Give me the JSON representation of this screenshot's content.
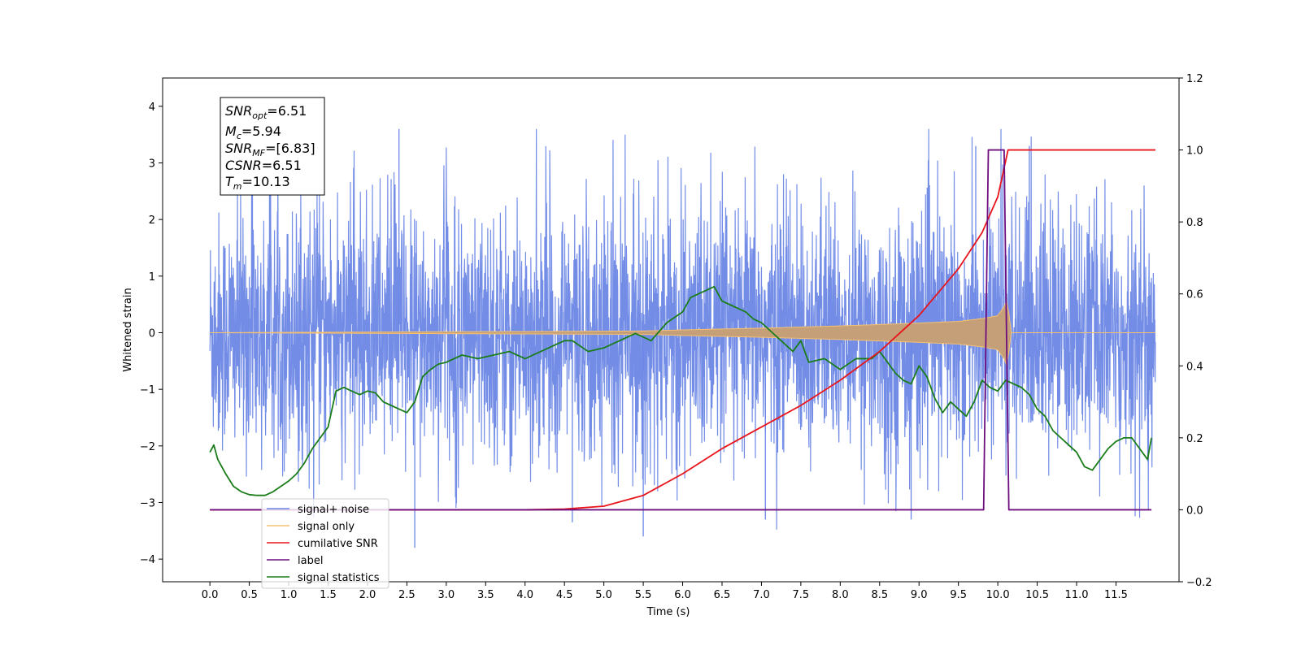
{
  "chart_data": {
    "type": "line",
    "xlabel": "Time (s)",
    "ylabel": "Whitened strain",
    "xlim": [
      -0.6,
      12.3
    ],
    "ylim": [
      -4.4,
      4.5
    ],
    "y2lim": [
      -0.2,
      1.2
    ],
    "x_ticks": [
      "0.0",
      "0.5",
      "1.0",
      "1.5",
      "2.0",
      "2.5",
      "3.0",
      "3.5",
      "4.0",
      "4.5",
      "5.0",
      "5.5",
      "6.0",
      "6.5",
      "7.0",
      "7.5",
      "8.0",
      "8.5",
      "9.0",
      "9.5",
      "10.0",
      "10.5",
      "11.0",
      "11.5"
    ],
    "y_ticks": [
      "−4",
      "−3",
      "−2",
      "−1",
      "0",
      "1",
      "2",
      "3",
      "4"
    ],
    "y2_ticks": [
      "−0.2",
      "0.0",
      "0.2",
      "0.4",
      "0.6",
      "0.8",
      "1.0",
      "1.2"
    ],
    "legend_position": "lower-left",
    "annotation": {
      "snr_opt": {
        "sym": "SNR",
        "sub": "opt",
        "val": "=6.51"
      },
      "mc": {
        "sym": "M",
        "sub": "c",
        "val": "=5.94"
      },
      "snr_mf": {
        "sym": "SNR",
        "sub": "MF",
        "val": "=[6.83]"
      },
      "csnr": {
        "sym": "CSNR",
        "sub": "",
        "val": "=6.51"
      },
      "tm": {
        "sym": "T",
        "sub": "m",
        "val": "=10.13"
      }
    },
    "legend": [
      {
        "label": "signal+ noise",
        "color": "#6b87e6"
      },
      {
        "label": "signal only",
        "color": "#f5c070"
      },
      {
        "label": "cumilative SNR",
        "color": "#e8141b"
      },
      {
        "label": "label",
        "color": "#6e0e7e"
      },
      {
        "label": "signal statistics",
        "color": "#1a7d1a"
      }
    ],
    "series": [
      {
        "name": "signal+ noise",
        "axis": "left",
        "color": "#6b87e6",
        "kind": "noise-band",
        "x_range": [
          0.0,
          12.0
        ],
        "typical_envelope": [
          -2.2,
          2.2
        ],
        "spike_peaks_max": [
          3.6,
          3.3
        ],
        "spike_troughs_min": [
          -3.8,
          -3.6
        ]
      },
      {
        "name": "signal only",
        "axis": "left",
        "color": "#f5c070",
        "kind": "chirp-envelope",
        "envelope_x": [
          0.0,
          5.5,
          6.0,
          7.0,
          8.0,
          9.0,
          9.5,
          9.8,
          10.0,
          10.1,
          10.13,
          10.15,
          12.0
        ],
        "envelope_amp": [
          0.0,
          0.03,
          0.05,
          0.08,
          0.12,
          0.17,
          0.2,
          0.25,
          0.3,
          0.5,
          0.7,
          0.0,
          0.0
        ]
      },
      {
        "name": "cumilative SNR",
        "axis": "right",
        "color": "#e8141b",
        "x": [
          0.0,
          4.0,
          4.5,
          5.0,
          5.5,
          6.0,
          6.5,
          7.0,
          7.5,
          8.0,
          8.5,
          9.0,
          9.5,
          9.8,
          10.0,
          10.13,
          12.0
        ],
        "y": [
          0.0,
          0.0,
          0.002,
          0.01,
          0.04,
          0.1,
          0.17,
          0.23,
          0.29,
          0.36,
          0.44,
          0.54,
          0.67,
          0.77,
          0.87,
          1.0,
          1.0
        ]
      },
      {
        "name": "label",
        "axis": "right",
        "color": "#6e0e7e",
        "x": [
          0.0,
          9.82,
          9.88,
          10.08,
          10.14,
          11.95
        ],
        "y": [
          0.0,
          0.0,
          1.0,
          1.0,
          0.0,
          0.0
        ]
      },
      {
        "name": "signal statistics",
        "axis": "right",
        "color": "#1a7d1a",
        "x": [
          0.0,
          0.05,
          0.1,
          0.2,
          0.3,
          0.4,
          0.5,
          0.6,
          0.7,
          0.8,
          0.9,
          1.0,
          1.1,
          1.2,
          1.3,
          1.4,
          1.5,
          1.6,
          1.7,
          1.8,
          1.9,
          2.0,
          2.1,
          2.2,
          2.3,
          2.4,
          2.5,
          2.6,
          2.7,
          2.8,
          2.9,
          3.0,
          3.2,
          3.4,
          3.6,
          3.8,
          4.0,
          4.2,
          4.4,
          4.5,
          4.6,
          4.8,
          5.0,
          5.2,
          5.4,
          5.6,
          5.8,
          6.0,
          6.1,
          6.2,
          6.3,
          6.4,
          6.5,
          6.6,
          6.7,
          6.8,
          6.9,
          7.0,
          7.2,
          7.4,
          7.5,
          7.6,
          7.8,
          8.0,
          8.2,
          8.4,
          8.5,
          8.6,
          8.7,
          8.8,
          8.9,
          9.0,
          9.1,
          9.2,
          9.3,
          9.4,
          9.5,
          9.6,
          9.7,
          9.8,
          9.9,
          10.0,
          10.1,
          10.2,
          10.3,
          10.4,
          10.5,
          10.6,
          10.7,
          10.8,
          10.9,
          11.0,
          11.1,
          11.2,
          11.3,
          11.4,
          11.5,
          11.6,
          11.7,
          11.8,
          11.9,
          11.95
        ],
        "y": [
          0.16,
          0.18,
          0.14,
          0.1,
          0.065,
          0.05,
          0.042,
          0.04,
          0.04,
          0.05,
          0.065,
          0.08,
          0.1,
          0.13,
          0.17,
          0.2,
          0.23,
          0.33,
          0.34,
          0.33,
          0.32,
          0.33,
          0.325,
          0.3,
          0.29,
          0.28,
          0.27,
          0.3,
          0.37,
          0.39,
          0.405,
          0.41,
          0.43,
          0.42,
          0.43,
          0.44,
          0.42,
          0.44,
          0.46,
          0.47,
          0.47,
          0.44,
          0.45,
          0.47,
          0.49,
          0.47,
          0.52,
          0.55,
          0.59,
          0.6,
          0.61,
          0.62,
          0.58,
          0.57,
          0.56,
          0.55,
          0.53,
          0.52,
          0.48,
          0.44,
          0.47,
          0.41,
          0.42,
          0.39,
          0.42,
          0.42,
          0.44,
          0.41,
          0.38,
          0.36,
          0.35,
          0.4,
          0.37,
          0.31,
          0.27,
          0.3,
          0.28,
          0.26,
          0.3,
          0.36,
          0.34,
          0.33,
          0.36,
          0.35,
          0.34,
          0.32,
          0.28,
          0.26,
          0.22,
          0.2,
          0.18,
          0.16,
          0.12,
          0.11,
          0.14,
          0.17,
          0.19,
          0.2,
          0.2,
          0.17,
          0.14,
          0.2
        ]
      }
    ]
  }
}
